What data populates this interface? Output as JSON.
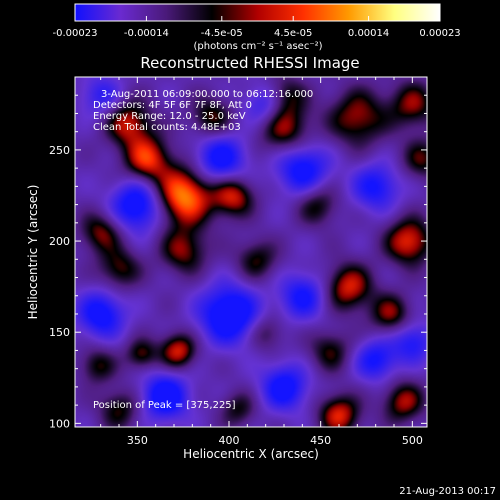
{
  "chart_data": {
    "type": "heatmap",
    "title": "Reconstructed RHESSI Image",
    "xlabel": "Heliocentric X (arcsec)",
    "ylabel": "Heliocentric Y (arcsec)",
    "xlim": [
      316,
      508
    ],
    "ylim": [
      98,
      290
    ],
    "x_ticks": [
      "350",
      "400",
      "450",
      "500"
    ],
    "y_ticks": [
      "100",
      "150",
      "200",
      "250"
    ],
    "x_tick_values": [
      350,
      400,
      450,
      500
    ],
    "y_tick_values": [
      100,
      150,
      200,
      250
    ],
    "colorbar": {
      "min": -0.00023,
      "max": 0.00023,
      "tick_labels": [
        "-0.00023",
        "-0.00014",
        "-4.5e-05",
        "4.5e-05",
        "0.00014",
        "0.00023"
      ],
      "tick_values": [
        -0.00023,
        -0.00014,
        -4.5e-05,
        4.5e-05,
        0.00014,
        0.00023
      ],
      "unit_label": "(photons cm⁻² s⁻¹ asec⁻²)",
      "colors": [
        "#1010ff",
        "#6a2ad0",
        "#4a1a7a",
        "#000000",
        "#b00000",
        "#ff3000",
        "#ff9a00",
        "#ffff80",
        "#ffffff"
      ]
    },
    "annotations": {
      "time_range": "3-Aug-2011 06:09:00.000 to 06:12:16.000",
      "detectors": "Detectors: 4F 5F 6F 7F 8F, Att 0",
      "energy_range": "Energy Range: 12.0 - 25.0 keV",
      "clean": "Clean     Total counts: 4.48E+03",
      "peak": "Position of Peak = [375,225]"
    },
    "peak_position": [
      375,
      225
    ],
    "sources": [
      {
        "x": 375,
        "y": 225,
        "amp": 1.0,
        "s": 11
      },
      {
        "x": 355,
        "y": 245,
        "amp": 0.75,
        "s": 9
      },
      {
        "x": 402,
        "y": 225,
        "amp": 0.7,
        "s": 8
      },
      {
        "x": 345,
        "y": 265,
        "amp": 0.65,
        "s": 9
      },
      {
        "x": 430,
        "y": 262,
        "amp": 0.6,
        "s": 10
      },
      {
        "x": 470,
        "y": 268,
        "amp": 0.6,
        "s": 11
      },
      {
        "x": 500,
        "y": 275,
        "amp": 0.55,
        "s": 9
      },
      {
        "x": 390,
        "y": 268,
        "amp": 0.5,
        "s": 8
      },
      {
        "x": 330,
        "y": 205,
        "amp": 0.55,
        "s": 8
      },
      {
        "x": 375,
        "y": 195,
        "amp": 0.55,
        "s": 9
      },
      {
        "x": 340,
        "y": 185,
        "amp": 0.5,
        "s": 8
      },
      {
        "x": 415,
        "y": 190,
        "amp": 0.45,
        "s": 8
      },
      {
        "x": 448,
        "y": 220,
        "amp": 0.45,
        "s": 8
      },
      {
        "x": 505,
        "y": 245,
        "amp": 0.45,
        "s": 8
      },
      {
        "x": 465,
        "y": 175,
        "amp": 0.7,
        "s": 9
      },
      {
        "x": 498,
        "y": 200,
        "amp": 0.75,
        "s": 9
      },
      {
        "x": 488,
        "y": 160,
        "amp": 0.55,
        "s": 8
      },
      {
        "x": 455,
        "y": 140,
        "amp": 0.45,
        "s": 8
      },
      {
        "x": 372,
        "y": 140,
        "amp": 0.7,
        "s": 7
      },
      {
        "x": 352,
        "y": 138,
        "amp": 0.5,
        "s": 6
      },
      {
        "x": 328,
        "y": 132,
        "amp": 0.45,
        "s": 7
      },
      {
        "x": 420,
        "y": 150,
        "amp": 0.35,
        "s": 7
      },
      {
        "x": 340,
        "y": 108,
        "amp": 0.45,
        "s": 8
      },
      {
        "x": 460,
        "y": 105,
        "amp": 0.7,
        "s": 8
      },
      {
        "x": 495,
        "y": 112,
        "amp": 0.6,
        "s": 8
      },
      {
        "x": 405,
        "y": 108,
        "amp": 0.4,
        "s": 7
      },
      {
        "x": 430,
        "y": 280,
        "amp": 0.45,
        "s": 8
      },
      {
        "x": 350,
        "y": 220,
        "amp": -0.8,
        "s": 10
      },
      {
        "x": 395,
        "y": 245,
        "amp": -0.7,
        "s": 10
      },
      {
        "x": 440,
        "y": 240,
        "amp": -0.7,
        "s": 10
      },
      {
        "x": 480,
        "y": 230,
        "amp": -0.6,
        "s": 9
      },
      {
        "x": 330,
        "y": 160,
        "amp": -0.7,
        "s": 9
      },
      {
        "x": 400,
        "y": 160,
        "amp": -0.9,
        "s": 11
      },
      {
        "x": 440,
        "y": 170,
        "amp": -0.6,
        "s": 9
      },
      {
        "x": 365,
        "y": 115,
        "amp": -0.8,
        "s": 9
      },
      {
        "x": 430,
        "y": 120,
        "amp": -0.7,
        "s": 9
      },
      {
        "x": 480,
        "y": 135,
        "amp": -0.6,
        "s": 8
      },
      {
        "x": 500,
        "y": 145,
        "amp": -0.55,
        "s": 8
      },
      {
        "x": 420,
        "y": 275,
        "amp": -0.55,
        "s": 8
      },
      {
        "x": 330,
        "y": 280,
        "amp": -0.45,
        "s": 8
      }
    ]
  },
  "footer": {
    "timestamp": "21-Aug-2013 00:17"
  }
}
